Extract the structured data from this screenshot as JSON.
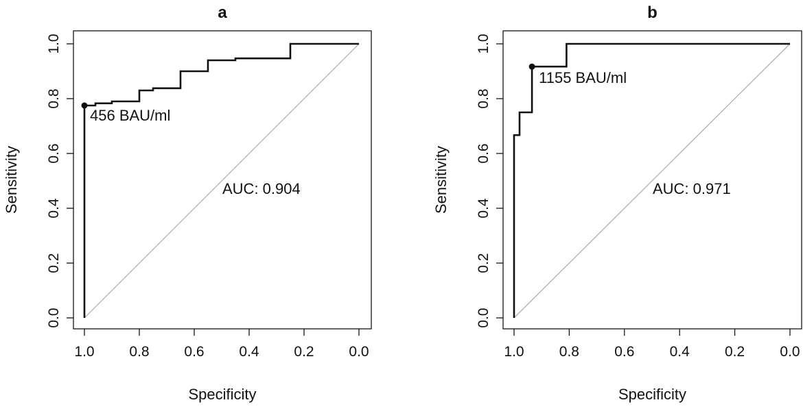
{
  "chart_data": [
    {
      "type": "line",
      "title": "a",
      "xlabel": "Specificity",
      "ylabel": "Sensitivity",
      "xlim": [
        1.0,
        0.0
      ],
      "ylim": [
        0.0,
        1.0
      ],
      "x_reversed": true,
      "xticks": [
        "1.0",
        "0.8",
        "0.6",
        "0.4",
        "0.2",
        "0.0"
      ],
      "yticks": [
        "0.0",
        "0.2",
        "0.4",
        "0.6",
        "0.8",
        "1.0"
      ],
      "grid": false,
      "reference_line": "diagonal",
      "auc_label": "AUC: 0.904",
      "threshold": {
        "label": "456 BAU/ml",
        "specificity": 1.0,
        "sensitivity": 0.775
      },
      "series": [
        {
          "x": [
            1.0,
            1.0,
            0.96,
            0.96,
            0.9,
            0.9,
            0.8,
            0.8,
            0.75,
            0.75,
            0.65,
            0.65,
            0.55,
            0.55,
            0.45,
            0.45,
            0.25,
            0.25,
            0.0
          ],
          "y": [
            0.0,
            0.775,
            0.775,
            0.783,
            0.783,
            0.79,
            0.79,
            0.83,
            0.83,
            0.838,
            0.838,
            0.9,
            0.9,
            0.94,
            0.94,
            0.947,
            0.947,
            1.0,
            1.0
          ]
        }
      ]
    },
    {
      "type": "line",
      "title": "b",
      "xlabel": "Specificity",
      "ylabel": "Sensitivity",
      "xlim": [
        1.0,
        0.0
      ],
      "ylim": [
        0.0,
        1.0
      ],
      "x_reversed": true,
      "xticks": [
        "1.0",
        "0.8",
        "0.6",
        "0.4",
        "0.2",
        "0.0"
      ],
      "yticks": [
        "0.0",
        "0.2",
        "0.4",
        "0.6",
        "0.8",
        "1.0"
      ],
      "grid": false,
      "reference_line": "diagonal",
      "auc_label": "AUC: 0.971",
      "threshold": {
        "label": "1155 BAU/ml",
        "specificity": 0.935,
        "sensitivity": 0.917
      },
      "series": [
        {
          "x": [
            1.0,
            1.0,
            0.98,
            0.98,
            0.96,
            0.96,
            0.935,
            0.935,
            0.81,
            0.81,
            0.0
          ],
          "y": [
            0.0,
            0.667,
            0.667,
            0.75,
            0.75,
            0.75,
            0.75,
            0.917,
            0.917,
            1.0,
            1.0
          ]
        }
      ]
    }
  ]
}
